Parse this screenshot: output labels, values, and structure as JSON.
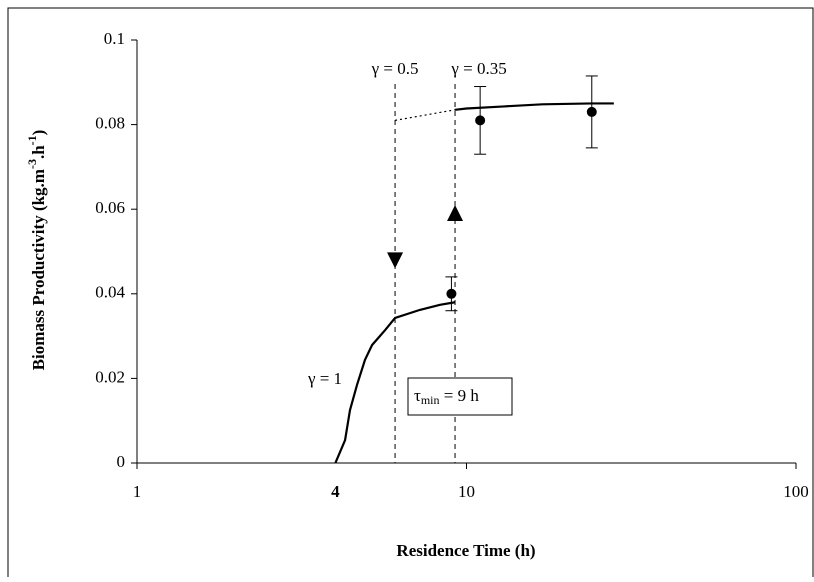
{
  "chart_data": {
    "type": "line",
    "y_label": [
      "Biomass Productivity (kg.m",
      "-3",
      ".h",
      "-1",
      ")"
    ],
    "x_label": "Residence Time (h)",
    "xscale": "log",
    "xlim": [
      1,
      100
    ],
    "xticks": [
      1,
      10,
      100
    ],
    "ylim": [
      0,
      0.1
    ],
    "yticks": [
      0,
      0.02,
      0.04,
      0.06,
      0.08,
      0.1
    ],
    "color": "#000000",
    "series": [
      {
        "x": [
          4,
          4.28,
          4.43,
          4.65,
          4.92,
          5.17,
          5.66,
          6.07,
          7.22,
          8.31,
          9.23
        ],
        "values": [
          0,
          0.0054,
          0.0125,
          0.0184,
          0.0244,
          0.0279,
          0.0314,
          0.0343,
          0.0362,
          0.0374,
          0.038
        ],
        "style": "solid"
      },
      {
        "x": [
          9.23,
          10,
          13,
          17,
          24,
          28
        ],
        "values": [
          0.0835,
          0.0838,
          0.0843,
          0.0848,
          0.085,
          0.085
        ],
        "style": "solid"
      },
      {
        "x": [
          6.07,
          9.23
        ],
        "values": [
          0.081,
          0.0835
        ],
        "style": "dotted"
      }
    ],
    "points": {
      "x": [
        9,
        11,
        24
      ],
      "values": [
        0.04,
        0.081,
        0.083
      ],
      "errors": [
        0.004,
        0.008,
        0.0085
      ]
    },
    "vlines": [
      {
        "x": 6.07,
        "arrow_y": 0.046,
        "label": "γ = 0.5"
      },
      {
        "x": 9.23,
        "arrow_y": 0.061,
        "label": "γ = 0.35"
      }
    ],
    "gamma1_label": "γ = 1",
    "tau_label": [
      "τ",
      "min",
      " = 9 h"
    ],
    "x_marker": {
      "value": 4,
      "label": "4"
    }
  }
}
